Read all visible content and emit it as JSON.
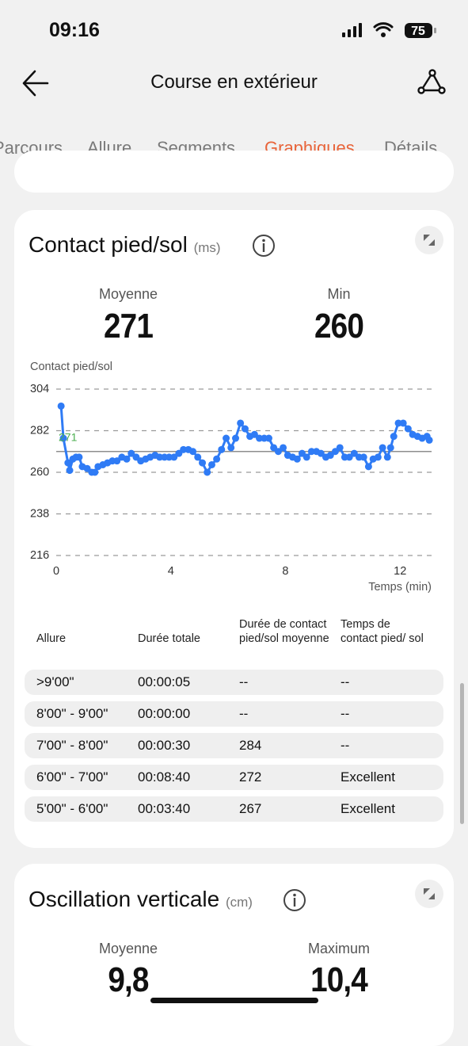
{
  "status": {
    "time": "09:16",
    "battery": "75"
  },
  "header": {
    "title": "Course en extérieur"
  },
  "tabs": [
    "Parcours",
    "Allure",
    "Segments",
    "Graphiques",
    "Détails"
  ],
  "card1": {
    "title": "Contact pied/sol",
    "unit": "(ms)",
    "stats": [
      {
        "label": "Moyenne",
        "value": 271
      },
      {
        "label": "Min",
        "value": 260
      }
    ]
  },
  "chart_data": {
    "type": "line",
    "markers": true,
    "ylabel": "Contact pied/sol",
    "xlabel": "Temps (min)",
    "xlim": [
      0,
      13.1
    ],
    "xticks": [
      0,
      4,
      8,
      12
    ],
    "ylim": [
      216,
      304
    ],
    "yticks": [
      216,
      238,
      260,
      282,
      304
    ],
    "grid": true,
    "average": 271,
    "series": [
      {
        "color": "#2f7bf5",
        "x": [
          0.17,
          0.25,
          0.41,
          0.47,
          0.58,
          0.69,
          0.8,
          0.91,
          1.08,
          1.24,
          1.35,
          1.46,
          1.63,
          1.79,
          1.96,
          2.12,
          2.29,
          2.46,
          2.62,
          2.79,
          2.95,
          3.12,
          3.28,
          3.45,
          3.61,
          3.78,
          3.94,
          4.11,
          4.28,
          4.44,
          4.61,
          4.77,
          4.94,
          5.1,
          5.27,
          5.43,
          5.6,
          5.77,
          5.93,
          6.1,
          6.26,
          6.43,
          6.59,
          6.76,
          6.92,
          7.09,
          7.26,
          7.42,
          7.59,
          7.75,
          7.92,
          8.08,
          8.25,
          8.41,
          8.58,
          8.74,
          8.91,
          9.08,
          9.24,
          9.41,
          9.57,
          9.74,
          9.9,
          10.07,
          10.23,
          10.4,
          10.57,
          10.73,
          10.9,
          11.06,
          11.23,
          11.39,
          11.56,
          11.67,
          11.78,
          11.94,
          12.11,
          12.28,
          12.44,
          12.61,
          12.77,
          12.94,
          13.02
        ],
        "values": [
          295,
          278,
          265,
          261,
          267,
          268,
          268,
          263,
          262,
          260,
          260,
          263,
          264,
          265,
          266,
          266,
          268,
          267,
          270,
          268,
          266,
          267,
          268,
          269,
          268,
          268,
          268,
          268,
          270,
          272,
          272,
          271,
          268,
          265,
          260,
          264,
          267,
          272,
          278,
          273,
          278,
          286,
          283,
          279,
          280,
          278,
          278,
          278,
          273,
          271,
          273,
          269,
          268,
          267,
          270,
          268,
          271,
          271,
          270,
          268,
          269,
          271,
          273,
          268,
          268,
          270,
          268,
          268,
          263,
          267,
          268,
          273,
          268,
          273,
          279,
          286,
          286,
          283,
          280,
          279,
          278,
          279,
          277
        ]
      }
    ]
  },
  "table": {
    "headers": [
      "Allure",
      "Durée totale",
      "Durée de contact pied/sol moyenne",
      "Temps de contact pied/ sol"
    ],
    "rows": [
      [
        ">9'00\"",
        "00:00:05",
        "--",
        "--"
      ],
      [
        "8'00\" - 9'00\"",
        "00:00:00",
        "--",
        "--"
      ],
      [
        "7'00\" - 8'00\"",
        "00:00:30",
        "284",
        "--"
      ],
      [
        "6'00\" - 7'00\"",
        "00:08:40",
        "272",
        "Excellent"
      ],
      [
        "5'00\" - 6'00\"",
        "00:03:40",
        "267",
        "Excellent"
      ]
    ]
  },
  "card2": {
    "title": "Oscillation verticale",
    "unit": "(cm)",
    "stats": [
      {
        "label": "Moyenne",
        "value": "9,8"
      },
      {
        "label": "Maximum",
        "value": "10,4"
      }
    ]
  }
}
